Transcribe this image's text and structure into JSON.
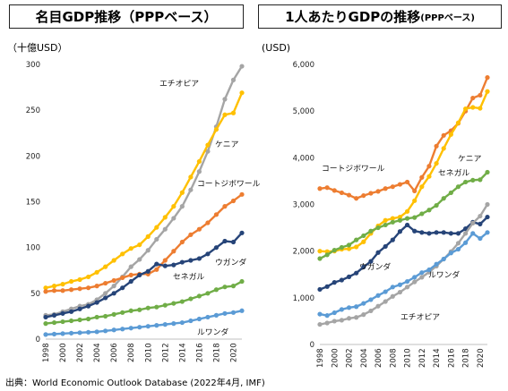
{
  "left_title": "名目GDP推移（PPPベース）",
  "right_title_main": "1人あたりGDPの推移",
  "right_title_small": "(PPPベース)",
  "source": "出典：World Economic Outlook Database (2022年4月, IMF)",
  "colors": {
    "ethiopia": "#a5a5a5",
    "kenya": "#ffc000",
    "cotedivoire": "#ed7d31",
    "uganda": "#264478",
    "senegal": "#70ad47",
    "rwanda": "#5b9bd5"
  },
  "chart_data": [
    {
      "type": "line",
      "ylabel": "（十億USD）",
      "ylim": [
        0,
        300
      ],
      "yticks": [
        0,
        50,
        100,
        150,
        200,
        250,
        300
      ],
      "ytick_labels": [
        "0",
        "50",
        "100",
        "150",
        "200",
        "250",
        "300"
      ],
      "x": [
        1998,
        1999,
        2000,
        2001,
        2002,
        2003,
        2004,
        2005,
        2006,
        2007,
        2008,
        2009,
        2010,
        2011,
        2012,
        2013,
        2014,
        2015,
        2016,
        2017,
        2018,
        2019,
        2020,
        2021
      ],
      "xtick_labels": [
        "1998",
        "2000",
        "2002",
        "2004",
        "2006",
        "2008",
        "2010",
        "2012",
        "2014",
        "2016",
        "2018",
        "2020"
      ],
      "series": [
        {
          "name": "エチオピア",
          "key": "ethiopia",
          "values": [
            26,
            27,
            30,
            33,
            36,
            38,
            43,
            50,
            58,
            68,
            79,
            87,
            97,
            109,
            120,
            132,
            145,
            163,
            183,
            205,
            232,
            262,
            283,
            298
          ]
        },
        {
          "name": "ケニア",
          "key": "kenya",
          "values": [
            56,
            58,
            60,
            63,
            65,
            68,
            73,
            79,
            86,
            93,
            99,
            103,
            112,
            122,
            133,
            145,
            160,
            177,
            194,
            212,
            229,
            245,
            247,
            269
          ]
        },
        {
          "name": "コートジボワール",
          "key": "cotedivoire",
          "values": [
            52,
            53,
            53,
            54,
            55,
            56,
            58,
            61,
            64,
            67,
            70,
            71,
            71,
            76,
            86,
            96,
            106,
            114,
            120,
            127,
            136,
            145,
            151,
            158
          ]
        },
        {
          "name": "ウガンダ",
          "key": "uganda",
          "values": [
            24,
            26,
            28,
            30,
            33,
            36,
            40,
            45,
            50,
            56,
            63,
            70,
            74,
            82,
            80,
            81,
            84,
            86,
            88,
            93,
            100,
            107,
            106,
            116
          ]
        },
        {
          "name": "セネガル",
          "key": "senegal",
          "values": [
            17,
            18,
            19,
            20,
            21,
            22,
            24,
            25,
            27,
            29,
            31,
            32,
            34,
            35,
            37,
            39,
            41,
            44,
            47,
            50,
            54,
            57,
            58,
            63
          ]
        },
        {
          "name": "ルワンダ",
          "key": "rwanda",
          "values": [
            5,
            5.5,
            6,
            6.5,
            7,
            7.5,
            8,
            9,
            10,
            11,
            12,
            13,
            14,
            15,
            16,
            17,
            18,
            20,
            22,
            24,
            26,
            28,
            29,
            31
          ]
        }
      ],
      "labels": [
        {
          "key": "ethiopia",
          "text": "エチオピア"
        },
        {
          "key": "kenya",
          "text": "ケニア"
        },
        {
          "key": "cotedivoire",
          "text": "コートジボワール"
        },
        {
          "key": "uganda",
          "text": "ウガンダ"
        },
        {
          "key": "senegal",
          "text": "セネガル"
        },
        {
          "key": "rwanda",
          "text": "ルワンダ"
        }
      ]
    },
    {
      "type": "line",
      "ylabel": "(USD)",
      "ylim": [
        0,
        6000
      ],
      "yticks": [
        0,
        1000,
        2000,
        3000,
        4000,
        5000,
        6000
      ],
      "ytick_labels": [
        "0",
        "1,000",
        "2,000",
        "3,000",
        "4,000",
        "5,000",
        "6,000"
      ],
      "x": [
        1998,
        1999,
        2000,
        2001,
        2002,
        2003,
        2004,
        2005,
        2006,
        2007,
        2008,
        2009,
        2010,
        2011,
        2012,
        2013,
        2014,
        2015,
        2016,
        2017,
        2018,
        2019,
        2020,
        2021
      ],
      "xtick_labels": [
        "1998",
        "2000",
        "2002",
        "2004",
        "2006",
        "2008",
        "2010",
        "2012",
        "2014",
        "2016",
        "2018",
        "2020"
      ],
      "series": [
        {
          "name": "コートジボワール",
          "key": "cotedivoire",
          "values": [
            3340,
            3360,
            3300,
            3250,
            3200,
            3130,
            3190,
            3240,
            3280,
            3340,
            3380,
            3430,
            3480,
            3290,
            3580,
            3820,
            4250,
            4480,
            4580,
            4740,
            5000,
            5280,
            5340,
            5720
          ]
        },
        {
          "name": "ケニア",
          "key": "kenya",
          "values": [
            2000,
            1990,
            2000,
            2040,
            2050,
            2090,
            2200,
            2380,
            2540,
            2660,
            2700,
            2730,
            2850,
            3080,
            3380,
            3600,
            3880,
            4200,
            4500,
            4750,
            5050,
            5080,
            5060,
            5420
          ]
        },
        {
          "name": "セネガル",
          "key": "senegal",
          "values": [
            1840,
            1920,
            2020,
            2080,
            2130,
            2240,
            2330,
            2430,
            2500,
            2560,
            2620,
            2660,
            2700,
            2720,
            2800,
            2880,
            2980,
            3130,
            3250,
            3380,
            3480,
            3520,
            3530,
            3690
          ]
        },
        {
          "name": "ウガンダ",
          "key": "uganda",
          "values": [
            1180,
            1240,
            1330,
            1380,
            1450,
            1530,
            1660,
            1780,
            1970,
            2100,
            2240,
            2420,
            2560,
            2430,
            2400,
            2380,
            2400,
            2400,
            2380,
            2380,
            2480,
            2620,
            2580,
            2730
          ]
        },
        {
          "name": "エチオピア",
          "key": "ethiopia",
          "values": [
            430,
            460,
            500,
            520,
            560,
            580,
            640,
            720,
            820,
            920,
            1030,
            1120,
            1230,
            1340,
            1440,
            1550,
            1680,
            1830,
            1990,
            2170,
            2380,
            2600,
            2750,
            3000
          ]
        },
        {
          "name": "ルワンダ",
          "key": "rwanda",
          "values": [
            650,
            620,
            680,
            750,
            790,
            810,
            880,
            960,
            1050,
            1130,
            1230,
            1280,
            1350,
            1440,
            1540,
            1600,
            1720,
            1830,
            1960,
            2040,
            2180,
            2380,
            2270,
            2400
          ]
        }
      ],
      "labels": [
        {
          "key": "cotedivoire",
          "text": "コートジボワール"
        },
        {
          "key": "kenya",
          "text": "ケニア"
        },
        {
          "key": "senegal",
          "text": "セネガル"
        },
        {
          "key": "uganda",
          "text": "ウガンダ"
        },
        {
          "key": "ethiopia",
          "text": "エチオピア"
        },
        {
          "key": "rwanda",
          "text": "ルワンダ"
        }
      ]
    }
  ]
}
